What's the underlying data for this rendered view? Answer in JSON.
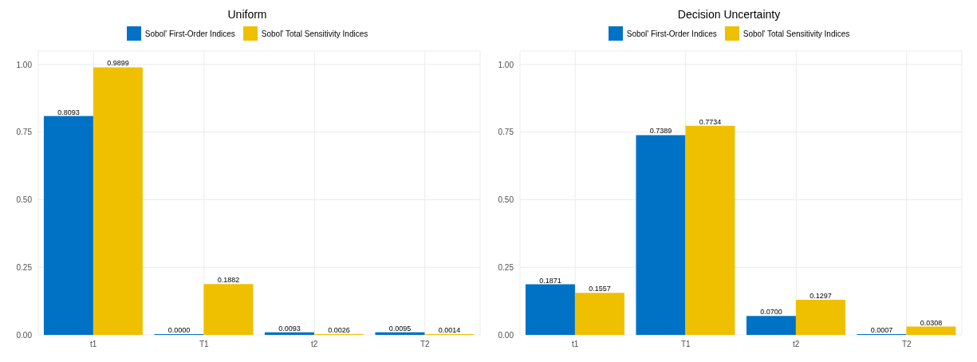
{
  "chart_data": [
    {
      "type": "bar",
      "title": "Uniform",
      "categories": [
        "t1",
        "T1",
        "t2",
        "T2"
      ],
      "series": [
        {
          "name": "Sobol' First-Order Indices",
          "color": "#0072c6",
          "values": [
            0.8093,
            0.0,
            0.0093,
            0.0095
          ],
          "value_labels": [
            "0.8093",
            "0.0000",
            "0.0093",
            "0.0095"
          ]
        },
        {
          "name": "Sobol' Total Sensitivity Indices",
          "color": "#efc000",
          "values": [
            0.9899,
            0.1882,
            0.0026,
            0.0014
          ],
          "value_labels": [
            "0.9899",
            "0.1882",
            "0.0026",
            "0.0014"
          ]
        }
      ],
      "ylim": [
        0,
        1.05
      ],
      "yticks": [
        {
          "value": 0,
          "label": "0.00"
        },
        {
          "value": 0.25,
          "label": "0.25"
        },
        {
          "value": 0.5,
          "label": "0.50"
        },
        {
          "value": 0.75,
          "label": "0.75"
        },
        {
          "value": 1,
          "label": "1.00"
        }
      ],
      "grid": true,
      "legend": "top"
    },
    {
      "type": "bar",
      "title": "Decision Uncertainty",
      "categories": [
        "t1",
        "T1",
        "t2",
        "T2"
      ],
      "series": [
        {
          "name": "Sobol' First-Order Indices",
          "color": "#0072c6",
          "values": [
            0.1871,
            0.7389,
            0.07,
            0.0007
          ],
          "value_labels": [
            "0.1871",
            "0.7389",
            "0.0700",
            "0.0007"
          ]
        },
        {
          "name": "Sobol' Total Sensitivity Indices",
          "color": "#efc000",
          "values": [
            0.1557,
            0.7734,
            0.1297,
            0.0308
          ],
          "value_labels": [
            "0.1557",
            "0.7734",
            "0.1297",
            "0.0308"
          ]
        }
      ],
      "ylim": [
        0,
        1.05
      ],
      "yticks": [
        {
          "value": 0,
          "label": "0.00"
        },
        {
          "value": 0.25,
          "label": "0.25"
        },
        {
          "value": 0.5,
          "label": "0.50"
        },
        {
          "value": 0.75,
          "label": "0.75"
        },
        {
          "value": 1,
          "label": "1.00"
        }
      ],
      "grid": true,
      "legend": "top"
    }
  ]
}
